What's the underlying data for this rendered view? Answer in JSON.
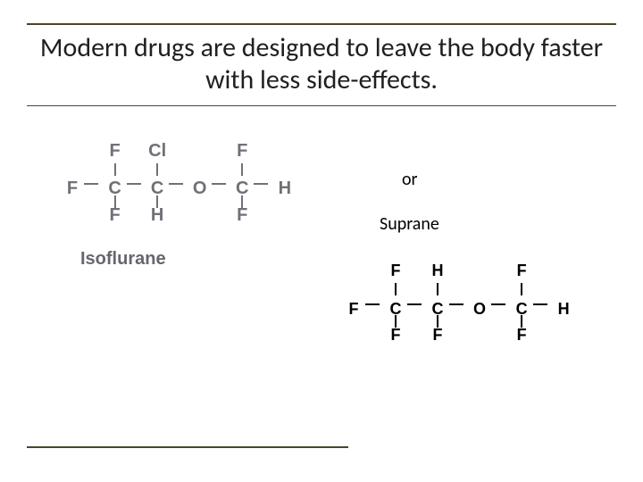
{
  "colors": {
    "rule": "#4a452a",
    "text": "#202020",
    "iso_atom": "#707078",
    "iso_label": "#66666e",
    "suprane_atom": "#000000"
  },
  "title": "Modern drugs are designed to leave the body faster with less side-effects.",
  "or_label": "or",
  "drug1": {
    "name": "Isoflurane",
    "row1": [
      "",
      "F",
      "",
      "Cl",
      "",
      "",
      "",
      "F",
      ""
    ],
    "row3": [
      "F",
      "C",
      "",
      "C",
      "",
      "O",
      "",
      "C",
      "H"
    ],
    "row5": [
      "",
      "F",
      "",
      "H",
      "",
      "",
      "",
      "F",
      ""
    ]
  },
  "drug2": {
    "name": "Suprane",
    "row1": [
      "",
      "F",
      "",
      "H",
      "",
      "",
      "",
      "F",
      ""
    ],
    "row3": [
      "F",
      "C",
      "",
      "C",
      "",
      "O",
      "",
      "C",
      "H"
    ],
    "row5": [
      "",
      "F",
      "",
      "F",
      "",
      "",
      "",
      "F",
      ""
    ]
  }
}
